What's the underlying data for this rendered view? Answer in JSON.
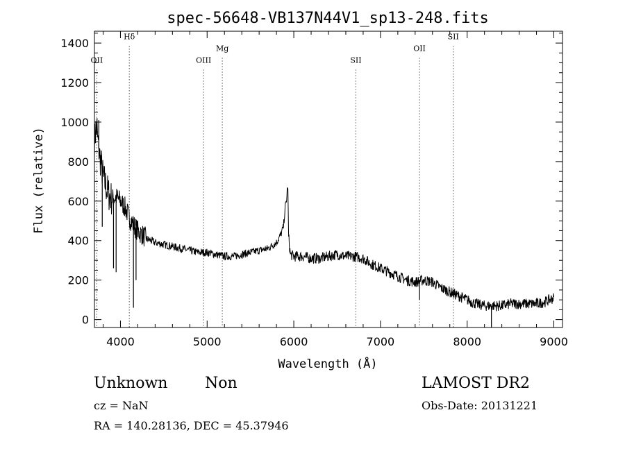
{
  "chart_data": {
    "type": "line",
    "title": "spec-56648-VB137N44V1_sp13-248.fits",
    "xlabel": "Wavelength (Å)",
    "ylabel": "Flux (relative)",
    "xlim": [
      3700,
      9100
    ],
    "ylim": [
      -40,
      1460
    ],
    "x_ticks": [
      4000,
      5000,
      6000,
      7000,
      8000,
      9000
    ],
    "y_ticks": [
      0,
      200,
      400,
      600,
      800,
      1000,
      1200,
      1400
    ],
    "grid": false,
    "spectrum_points": [
      [
        3700,
        900
      ],
      [
        3720,
        980
      ],
      [
        3740,
        900
      ],
      [
        3760,
        830
      ],
      [
        3780,
        780
      ],
      [
        3800,
        720
      ],
      [
        3830,
        680
      ],
      [
        3860,
        640
      ],
      [
        3900,
        610
      ],
      [
        3950,
        620
      ],
      [
        4000,
        600
      ],
      [
        4050,
        570
      ],
      [
        4100,
        520
      ],
      [
        4150,
        480
      ],
      [
        4200,
        450
      ],
      [
        4300,
        410
      ],
      [
        4400,
        390
      ],
      [
        4500,
        380
      ],
      [
        4600,
        370
      ],
      [
        4700,
        360
      ],
      [
        4800,
        350
      ],
      [
        4900,
        340
      ],
      [
        5000,
        340
      ],
      [
        5100,
        330
      ],
      [
        5200,
        320
      ],
      [
        5300,
        320
      ],
      [
        5400,
        330
      ],
      [
        5500,
        340
      ],
      [
        5600,
        350
      ],
      [
        5700,
        360
      ],
      [
        5800,
        390
      ],
      [
        5850,
        430
      ],
      [
        5880,
        470
      ],
      [
        5900,
        560
      ],
      [
        5920,
        620
      ],
      [
        5930,
        700
      ],
      [
        5940,
        420
      ],
      [
        5960,
        330
      ],
      [
        6000,
        320
      ],
      [
        6100,
        320
      ],
      [
        6200,
        310
      ],
      [
        6300,
        310
      ],
      [
        6400,
        320
      ],
      [
        6500,
        330
      ],
      [
        6600,
        320
      ],
      [
        6700,
        320
      ],
      [
        6800,
        310
      ],
      [
        6900,
        280
      ],
      [
        7000,
        260
      ],
      [
        7100,
        240
      ],
      [
        7200,
        220
      ],
      [
        7300,
        200
      ],
      [
        7400,
        190
      ],
      [
        7500,
        200
      ],
      [
        7600,
        190
      ],
      [
        7700,
        160
      ],
      [
        7800,
        140
      ],
      [
        7900,
        120
      ],
      [
        8000,
        100
      ],
      [
        8100,
        80
      ],
      [
        8200,
        70
      ],
      [
        8300,
        70
      ],
      [
        8400,
        70
      ],
      [
        8500,
        80
      ],
      [
        8600,
        80
      ],
      [
        8700,
        80
      ],
      [
        8800,
        80
      ],
      [
        8900,
        90
      ],
      [
        9000,
        110
      ]
    ],
    "spikes": [
      {
        "x": 3730,
        "y": 1020
      },
      {
        "x": 3750,
        "y": 1010
      },
      {
        "x": 3790,
        "y": 470
      },
      {
        "x": 3920,
        "y": 260
      },
      {
        "x": 3950,
        "y": 240
      },
      {
        "x": 4150,
        "y": 60
      },
      {
        "x": 4180,
        "y": 200
      },
      {
        "x": 7450,
        "y": 100
      },
      {
        "x": 8280,
        "y": -40
      }
    ],
    "lines": [
      {
        "label": "OII",
        "wavelength": 3727,
        "label_y": 1300
      },
      {
        "label": "Hδ",
        "wavelength": 4102,
        "label_y": 1420
      },
      {
        "label": "OIII",
        "wavelength": 4959,
        "label_y": 1300
      },
      {
        "label": "Mg",
        "wavelength": 5175,
        "label_y": 1360
      },
      {
        "label": "SII",
        "wavelength": 6716,
        "label_y": 1300
      },
      {
        "label": "OII",
        "wavelength": 7450,
        "label_y": 1360
      },
      {
        "label": "SII",
        "wavelength": 7840,
        "label_y": 1420
      }
    ]
  },
  "footer": {
    "class_label": "Unknown",
    "subclass_label": "Non",
    "survey": "LAMOST DR2",
    "redshift": "cz = NaN",
    "obs_date": "Obs-Date: 20131221",
    "coords": "RA = 140.28136, DEC =  45.37946"
  }
}
